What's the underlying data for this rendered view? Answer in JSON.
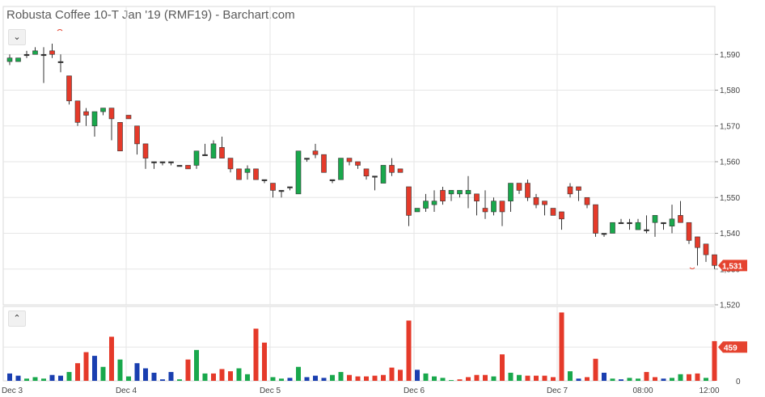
{
  "chart_data": {
    "type": "candlestick",
    "title": "Robusta Coffee 10-T Jan '19 (RMF19) - Barchart.com",
    "x_ticks": [
      "Dec 3",
      "Dec 4",
      "Dec 5",
      "Dec 6",
      "Dec 7",
      "08:00",
      "12:00"
    ],
    "y_ticks": [
      1520,
      1530,
      1540,
      1550,
      1560,
      1570,
      1580,
      1590
    ],
    "ylim": [
      1520,
      1593
    ],
    "last_price": "1,531",
    "volume_ticks": [
      0,
      459
    ],
    "volume_max": 1100,
    "last_volume": "459",
    "colors": {
      "up": "#19a84c",
      "down": "#e53a2a",
      "neutral": "#1a3fb0",
      "doji": "#333333",
      "badge": "#e5432f"
    },
    "candles": [
      [
        1588,
        1590,
        1589,
        1587,
        1.0
      ],
      [
        1588,
        1589,
        1589,
        1588,
        0.7
      ],
      [
        1590,
        1591,
        1590,
        1589,
        0.3
      ],
      [
        1590,
        1592,
        1591,
        1590,
        0.5
      ],
      [
        1590,
        1592,
        1590,
        1582,
        0.3
      ],
      [
        1591,
        1593,
        1590,
        1589,
        0.8
      ],
      [
        1588,
        1590,
        1588,
        1585,
        0.7
      ],
      [
        1584,
        1584,
        1577,
        1576,
        1.2
      ],
      [
        1577,
        1577,
        1571,
        1570,
        2.4
      ],
      [
        1574,
        1575,
        1573,
        1570,
        3.9
      ],
      [
        1570,
        1574,
        1574,
        1567,
        3.4
      ],
      [
        1574,
        1575,
        1575,
        1573,
        1.9
      ],
      [
        1575,
        1575,
        1572,
        1566,
        6.0
      ],
      [
        1571,
        1571,
        1563,
        1563,
        2.9
      ],
      [
        1573,
        1573,
        1572,
        1572,
        0.6
      ],
      [
        1570,
        1570,
        1565,
        1562,
        2.4
      ],
      [
        1565,
        1565,
        1561,
        1558,
        1.7
      ],
      [
        1560,
        1560,
        1560,
        1558,
        1.1
      ],
      [
        1560,
        1560,
        1560,
        1559,
        0.2
      ],
      [
        1560,
        1560,
        1560,
        1559,
        1.2
      ],
      [
        1559,
        1559,
        1559,
        1559,
        0.2
      ],
      [
        1559,
        1559,
        1558,
        1558,
        2.9
      ],
      [
        1559,
        1563,
        1563,
        1558,
        4.2
      ],
      [
        1562,
        1565,
        1562,
        1562,
        1.0
      ],
      [
        1561,
        1566,
        1565,
        1561,
        1.0
      ],
      [
        1564,
        1567,
        1561,
        1561,
        1.6
      ],
      [
        1561,
        1561,
        1558,
        1557,
        1.3
      ],
      [
        1558,
        1558,
        1555,
        1555,
        1.7
      ],
      [
        1557,
        1559,
        1558,
        1555,
        0.9
      ],
      [
        1558,
        1558,
        1555,
        1555,
        7.1
      ],
      [
        1555,
        1555,
        1555,
        1554,
        5.2
      ],
      [
        1554,
        1554,
        1552,
        1550,
        0.5
      ],
      [
        1552,
        1552,
        1552,
        1550,
        0.3
      ],
      [
        1553,
        1553,
        1553,
        1552,
        0.4
      ],
      [
        1551,
        1563,
        1563,
        1551,
        1.9
      ],
      [
        1561,
        1561,
        1561,
        1560,
        0.5
      ],
      [
        1563,
        1565,
        1562,
        1561,
        0.7
      ],
      [
        1562,
        1562,
        1557,
        1557,
        0.4
      ],
      [
        1555,
        1555,
        1555,
        1554,
        0.8
      ],
      [
        1555,
        1560,
        1561,
        1556,
        1.2
      ],
      [
        1561,
        1561,
        1560,
        1559,
        0.8
      ],
      [
        1560,
        1560,
        1559,
        1558,
        0.6
      ],
      [
        1558,
        1558,
        1556,
        1555,
        0.6
      ],
      [
        1556,
        1556,
        1556,
        1552,
        0.7
      ],
      [
        1554,
        1559,
        1559,
        1554,
        0.8
      ],
      [
        1559,
        1561,
        1557,
        1556,
        1.8
      ],
      [
        1558,
        1558,
        1557,
        1557,
        1.5
      ],
      [
        1553,
        1553,
        1545,
        1542,
        8.2
      ],
      [
        1546,
        1547,
        1547,
        1546,
        1.5
      ],
      [
        1547,
        1551,
        1549,
        1546,
        1.0
      ],
      [
        1548,
        1552,
        1549,
        1546,
        0.6
      ],
      [
        1552,
        1553,
        1549,
        1548,
        0.4
      ],
      [
        1551,
        1552,
        1552,
        1549,
        0.1
      ],
      [
        1551,
        1552,
        1552,
        1550,
        0.2
      ],
      [
        1551,
        1556,
        1552,
        1547,
        0.5
      ],
      [
        1551,
        1551,
        1549,
        1545,
        0.8
      ],
      [
        1547,
        1552,
        1546,
        1544,
        0.8
      ],
      [
        1546,
        1550,
        1549,
        1545,
        0.6
      ],
      [
        1549,
        1549,
        1546,
        1542,
        3.6
      ],
      [
        1549,
        1554,
        1554,
        1546,
        1.1
      ],
      [
        1554,
        1554,
        1552,
        1551,
        0.8
      ],
      [
        1554,
        1555,
        1550,
        1549,
        0.7
      ],
      [
        1550,
        1551,
        1548,
        1547,
        0.7
      ],
      [
        1549,
        1549,
        1548,
        1545,
        0.7
      ],
      [
        1547,
        1547,
        1545,
        1545,
        0.5
      ],
      [
        1546,
        1546,
        1544,
        1541,
        9.3
      ],
      [
        1553,
        1554,
        1551,
        1550,
        1.3
      ],
      [
        1553,
        1553,
        1552,
        1549,
        0.3
      ],
      [
        1550,
        1550,
        1548,
        1547,
        0.5
      ],
      [
        1548,
        1548,
        1540,
        1539,
        3.0
      ],
      [
        1540,
        1540,
        1540,
        1539,
        1.1
      ],
      [
        1540,
        1543,
        1543,
        1540,
        0.3
      ],
      [
        1543,
        1544,
        1543,
        1543,
        0.2
      ],
      [
        1543,
        1544,
        1543,
        1541,
        0.4
      ],
      [
        1541,
        1544,
        1543,
        1541,
        0.3
      ],
      [
        1541,
        1545,
        1541,
        1540,
        1.2
      ],
      [
        1543,
        1545,
        1545,
        1539,
        0.5
      ],
      [
        1543,
        1543,
        1543,
        1541,
        0.3
      ],
      [
        1542,
        1548,
        1544,
        1540,
        0.4
      ],
      [
        1545,
        1549,
        1543,
        1543,
        0.9
      ],
      [
        1543,
        1543,
        1538,
        1537,
        0.9
      ],
      [
        1539,
        1539,
        1536,
        1531,
        1.0
      ],
      [
        1537,
        1537,
        1534,
        1532,
        0.4
      ],
      [
        1534,
        1534,
        1531,
        1530,
        5.4
      ]
    ],
    "volume_colors": [
      "neutral",
      "neutral",
      "up",
      "up",
      "up",
      "neutral",
      "neutral",
      "up",
      "down",
      "down",
      "neutral",
      "up",
      "down",
      "up",
      "up",
      "neutral",
      "neutral",
      "neutral",
      "neutral",
      "neutral",
      "up",
      "down",
      "up",
      "up",
      "down",
      "down",
      "down",
      "up",
      "up",
      "down",
      "down",
      "up",
      "up",
      "neutral",
      "up",
      "neutral",
      "neutral",
      "neutral",
      "up",
      "up",
      "down",
      "down",
      "down",
      "down",
      "down",
      "down",
      "down",
      "down",
      "neutral",
      "up",
      "up",
      "up",
      "up",
      "down",
      "down",
      "down",
      "down",
      "up",
      "down",
      "up",
      "up",
      "down",
      "down",
      "down",
      "down",
      "down",
      "up",
      "neutral",
      "down",
      "down",
      "neutral",
      "up",
      "neutral",
      "up",
      "up",
      "down",
      "down",
      "neutral",
      "up",
      "up",
      "down",
      "down",
      "up",
      "down"
    ]
  }
}
